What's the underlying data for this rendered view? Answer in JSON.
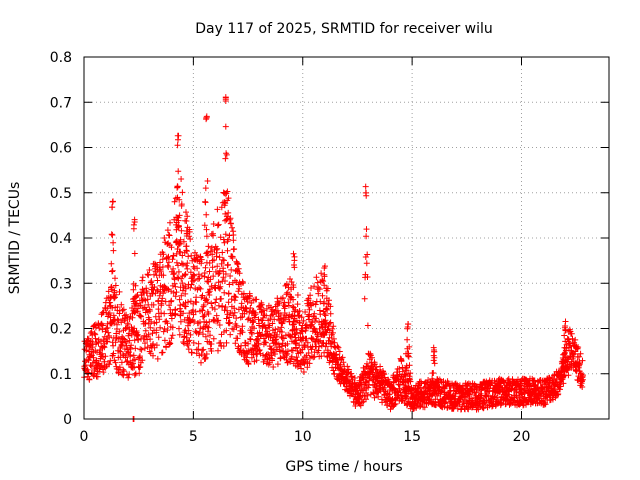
{
  "chart_data": {
    "type": "scatter",
    "title": "Day 117 of 2025, SRMTID for receiver wilu",
    "xlabel": "GPS time / hours",
    "ylabel": "SRMTID / TECUs",
    "xlim": [
      0,
      24
    ],
    "ylim": [
      0,
      0.8
    ],
    "x_ticks": [
      0,
      5,
      10,
      15,
      20
    ],
    "y_ticks": [
      0,
      0.1,
      0.2,
      0.3,
      0.4,
      0.5,
      0.6,
      0.7,
      0.8
    ],
    "x_tick_labels": [
      "0",
      "5",
      "10",
      "15",
      "20"
    ],
    "y_tick_labels": [
      "0",
      "0.1",
      "0.2",
      "0.3",
      "0.4",
      "0.5",
      "0.6",
      "0.7",
      "0.8"
    ],
    "grid": true,
    "marker": "+",
    "color": "#ff0000",
    "envelope": [
      {
        "t": 0.0,
        "base": 0.13,
        "spread": 0.05
      },
      {
        "t": 0.5,
        "base": 0.15,
        "spread": 0.06
      },
      {
        "t": 1.0,
        "base": 0.18,
        "spread": 0.08
      },
      {
        "t": 1.4,
        "base": 0.22,
        "spread": 0.12
      },
      {
        "t": 2.0,
        "base": 0.15,
        "spread": 0.07
      },
      {
        "t": 2.5,
        "base": 0.2,
        "spread": 0.1
      },
      {
        "t": 3.0,
        "base": 0.24,
        "spread": 0.1
      },
      {
        "t": 3.5,
        "base": 0.25,
        "spread": 0.12
      },
      {
        "t": 4.0,
        "base": 0.32,
        "spread": 0.15
      },
      {
        "t": 4.4,
        "base": 0.36,
        "spread": 0.18
      },
      {
        "t": 5.0,
        "base": 0.25,
        "spread": 0.12
      },
      {
        "t": 5.5,
        "base": 0.24,
        "spread": 0.12
      },
      {
        "t": 6.0,
        "base": 0.3,
        "spread": 0.15
      },
      {
        "t": 6.5,
        "base": 0.33,
        "spread": 0.2
      },
      {
        "t": 7.0,
        "base": 0.25,
        "spread": 0.1
      },
      {
        "t": 7.5,
        "base": 0.2,
        "spread": 0.08
      },
      {
        "t": 8.0,
        "base": 0.2,
        "spread": 0.07
      },
      {
        "t": 8.5,
        "base": 0.18,
        "spread": 0.07
      },
      {
        "t": 9.0,
        "base": 0.2,
        "spread": 0.08
      },
      {
        "t": 9.5,
        "base": 0.22,
        "spread": 0.1
      },
      {
        "t": 10.0,
        "base": 0.17,
        "spread": 0.07
      },
      {
        "t": 10.5,
        "base": 0.22,
        "spread": 0.09
      },
      {
        "t": 11.0,
        "base": 0.24,
        "spread": 0.1
      },
      {
        "t": 11.5,
        "base": 0.13,
        "spread": 0.04
      },
      {
        "t": 12.0,
        "base": 0.09,
        "spread": 0.03
      },
      {
        "t": 12.5,
        "base": 0.05,
        "spread": 0.03
      },
      {
        "t": 13.0,
        "base": 0.1,
        "spread": 0.05
      },
      {
        "t": 13.5,
        "base": 0.08,
        "spread": 0.04
      },
      {
        "t": 14.0,
        "base": 0.05,
        "spread": 0.03
      },
      {
        "t": 14.5,
        "base": 0.09,
        "spread": 0.05
      },
      {
        "t": 15.0,
        "base": 0.05,
        "spread": 0.03
      },
      {
        "t": 16.0,
        "base": 0.06,
        "spread": 0.03
      },
      {
        "t": 17.0,
        "base": 0.05,
        "spread": 0.03
      },
      {
        "t": 18.0,
        "base": 0.05,
        "spread": 0.03
      },
      {
        "t": 19.0,
        "base": 0.06,
        "spread": 0.03
      },
      {
        "t": 20.0,
        "base": 0.06,
        "spread": 0.03
      },
      {
        "t": 21.0,
        "base": 0.06,
        "spread": 0.03
      },
      {
        "t": 21.7,
        "base": 0.08,
        "spread": 0.03
      },
      {
        "t": 22.2,
        "base": 0.16,
        "spread": 0.04
      },
      {
        "t": 22.8,
        "base": 0.1,
        "spread": 0.04
      }
    ],
    "spikes": [
      {
        "t": 1.3,
        "peak": 0.49,
        "width": 0.1
      },
      {
        "t": 2.3,
        "peak": 0.45,
        "width": 0.08
      },
      {
        "t": 4.3,
        "peak": 0.63,
        "width": 0.15
      },
      {
        "t": 4.7,
        "peak": 0.43,
        "width": 0.12
      },
      {
        "t": 5.6,
        "peak": 0.68,
        "width": 0.1
      },
      {
        "t": 6.5,
        "peak": 0.72,
        "width": 0.12
      },
      {
        "t": 9.6,
        "peak": 0.37,
        "width": 0.1
      },
      {
        "t": 11.0,
        "peak": 0.34,
        "width": 0.1
      },
      {
        "t": 12.9,
        "peak": 0.52,
        "width": 0.08
      },
      {
        "t": 14.8,
        "peak": 0.21,
        "width": 0.12
      },
      {
        "t": 16.0,
        "peak": 0.16,
        "width": 0.1
      },
      {
        "t": 22.0,
        "peak": 0.22,
        "width": 0.15
      }
    ],
    "extra_points": [
      {
        "x": 2.25,
        "y": 0.0
      },
      {
        "x": 2.28,
        "y": 0.0
      }
    ],
    "time_end": 22.8,
    "sample_step_hours": 0.016
  }
}
